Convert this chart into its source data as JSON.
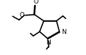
{
  "bg_color": "#ffffff",
  "line_color": "#000000",
  "lw": 1.2,
  "fs": 6.5,
  "figsize": [
    1.22,
    0.78
  ],
  "dpi": 100,
  "xlim": [
    0.0,
    1.22
  ],
  "ylim": [
    0.0,
    0.78
  ]
}
